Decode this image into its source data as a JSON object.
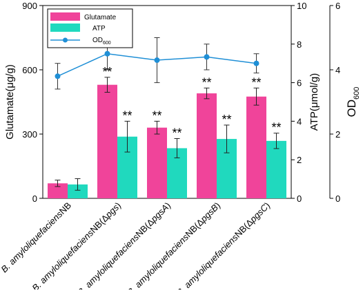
{
  "chart_data": {
    "type": "bar",
    "categories": [
      "B. amyloliquefaciensNB",
      "B. amyloliquefaciensNB(Δpgs)",
      "B. amyloliquefaciensNB(ΔpgsA)",
      "B. amyloliquefaciensNB(ΔpgsB)",
      "B. amyloliquefaciensNB(ΔpgsC)"
    ],
    "category_parts": [
      {
        "prefix": "B. amyloliquefaciens",
        "suffix": "NB"
      },
      {
        "prefix": "B. amyloliquefaciens",
        "suffix": "NB(Δ",
        "gene": "pgs",
        "close": ")"
      },
      {
        "prefix": "B. amyloliquefaciens",
        "suffix": "NB(Δ",
        "gene": "pgsA",
        "close": ")"
      },
      {
        "prefix": "B. amyloliquefaciens",
        "suffix": "NB(Δ",
        "gene": "pgsB",
        "close": ")"
      },
      {
        "prefix": "B. amyloliquefaciens",
        "suffix": "NB(Δ",
        "gene": "pgsC",
        "close": ")"
      }
    ],
    "series": [
      {
        "name": "Glutamate",
        "axis": "left",
        "kind": "bar",
        "color": "#f0449a",
        "values": [
          70,
          530,
          330,
          490,
          475
        ],
        "errors": [
          15,
          35,
          30,
          25,
          40
        ],
        "annotations": [
          "",
          "**",
          "**",
          "**",
          "**"
        ]
      },
      {
        "name": "ATP",
        "axis": "right1",
        "kind": "bar",
        "color": "#20d9be",
        "values": [
          0.72,
          3.2,
          2.6,
          3.08,
          2.98
        ],
        "errors": [
          0.3,
          0.8,
          0.5,
          0.72,
          0.4
        ],
        "annotations": [
          "",
          "**",
          "**",
          "**",
          "**"
        ]
      },
      {
        "name": "OD",
        "name_sub": "600",
        "axis": "right2",
        "kind": "line",
        "color": "#1f8fd6",
        "values": [
          3.8,
          4.5,
          4.3,
          4.4,
          4.2
        ],
        "errors": [
          0.4,
          0.5,
          0.7,
          0.4,
          0.3
        ]
      }
    ],
    "axes": {
      "left": {
        "label": "Glutamate(μg/g)",
        "min": 0,
        "max": 900,
        "ticks": [
          "0",
          "300",
          "600",
          "900"
        ]
      },
      "right1": {
        "label": "ATP(μmol/g)",
        "min": 0,
        "max": 10,
        "ticks": [
          "0",
          "2",
          "4",
          "6",
          "8",
          "10"
        ]
      },
      "right2": {
        "label": "OD",
        "label_sub": "600",
        "min": 0,
        "max": 6,
        "ticks": [
          "0",
          "2",
          "4",
          "6"
        ]
      }
    },
    "legend_position": "top-left",
    "grid": false
  }
}
